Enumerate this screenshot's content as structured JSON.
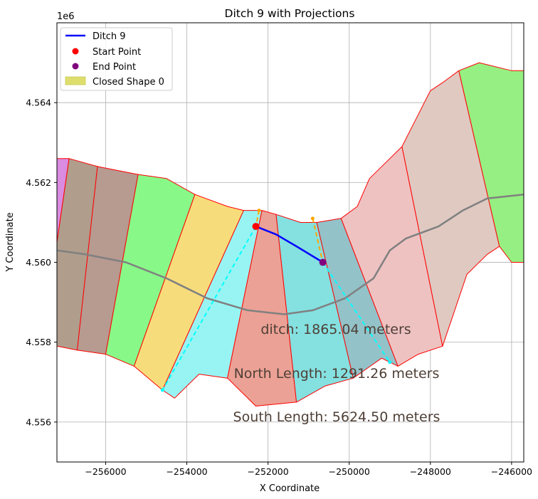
{
  "chart_data": {
    "type": "line",
    "title": "Ditch 9 with Projections",
    "xlabel": "X Coordinate",
    "ylabel": "Y Coordinate",
    "y_offset_label": "1e6",
    "xlim": [
      -257200,
      -245700
    ],
    "ylim": [
      4.555,
      4.566
    ],
    "y_unit_scale": 1000000,
    "x_ticks": [
      -256000,
      -254000,
      -252000,
      -250000,
      -248000,
      -246000
    ],
    "x_tick_labels": [
      "−256000",
      "−254000",
      "−252000",
      "−250000",
      "−248000",
      "−246000"
    ],
    "y_ticks": [
      4.556,
      4.558,
      4.56,
      4.562,
      4.564
    ],
    "y_tick_labels": [
      "4.556",
      "4.558",
      "4.560",
      "4.562",
      "4.564"
    ],
    "grid": true,
    "legend_position": "top-left",
    "legend": [
      {
        "label": "Ditch 9",
        "kind": "line",
        "color": "#0000ff"
      },
      {
        "label": "Start Point",
        "kind": "marker",
        "color": "#ff0000"
      },
      {
        "label": "End Point",
        "kind": "marker",
        "color": "#800080"
      },
      {
        "label": "Closed Shape 0",
        "kind": "patch",
        "color": "#dede6e"
      }
    ],
    "ditch": {
      "color": "#0000ff",
      "points": [
        [
          -252300,
          4.5609
        ],
        [
          -251800,
          4.5607
        ],
        [
          -251300,
          4.5604
        ],
        [
          -250650,
          4.56
        ]
      ]
    },
    "start_point": {
      "x": -252300,
      "y": 4.5609,
      "color": "#ff0000"
    },
    "end_point": {
      "x": -250650,
      "y": 4.56,
      "color": "#800080"
    },
    "centerline": {
      "color": "#808080",
      "points": [
        [
          -257200,
          4.5603
        ],
        [
          -256500,
          4.5602
        ],
        [
          -255500,
          4.56
        ],
        [
          -254500,
          4.5596
        ],
        [
          -253500,
          4.5591
        ],
        [
          -252500,
          4.5588
        ],
        [
          -251600,
          4.5587
        ],
        [
          -250900,
          4.5588
        ],
        [
          -250100,
          4.5591
        ],
        [
          -249400,
          4.5596
        ],
        [
          -249000,
          4.5603
        ],
        [
          -248600,
          4.5606
        ],
        [
          -247800,
          4.5609
        ],
        [
          -247200,
          4.5613
        ],
        [
          -246600,
          4.5616
        ],
        [
          -245700,
          4.5617
        ]
      ]
    },
    "projections": [
      {
        "color": "#ffa500",
        "points": [
          [
            -252220,
            4.5613
          ],
          [
            -252300,
            4.5609
          ]
        ]
      },
      {
        "color": "#ffa500",
        "points": [
          [
            -250900,
            4.5611
          ],
          [
            -250650,
            4.56
          ]
        ]
      },
      {
        "color": "#00ffff",
        "points": [
          [
            -252300,
            4.5609
          ],
          [
            -254600,
            4.5568
          ]
        ]
      },
      {
        "color": "#00ffff",
        "points": [
          [
            -250650,
            4.56
          ],
          [
            -249000,
            4.5575
          ]
        ]
      }
    ],
    "projection_endpoints": [
      {
        "x": -252220,
        "y": 4.5613,
        "color": "#ffa500"
      },
      {
        "x": -250900,
        "y": 4.5611,
        "color": "#ffa500"
      },
      {
        "x": -254600,
        "y": 4.5568,
        "color": "#00ffff"
      },
      {
        "x": -249000,
        "y": 4.5575,
        "color": "#00ffff"
      }
    ],
    "segments": [
      {
        "color": "#d98ce0",
        "points": [
          [
            -257200,
            4.5626
          ],
          [
            -256900,
            4.5626
          ],
          [
            -257200,
            4.5605
          ]
        ]
      },
      {
        "color": "#b09d8c",
        "points": [
          [
            -256900,
            4.5626
          ],
          [
            -256200,
            4.5624
          ],
          [
            -256700,
            4.5578
          ],
          [
            -257200,
            4.5579
          ],
          [
            -257200,
            4.5605
          ]
        ]
      },
      {
        "color": "#b79a90",
        "points": [
          [
            -256200,
            4.5624
          ],
          [
            -255200,
            4.5622
          ],
          [
            -256000,
            4.5577
          ],
          [
            -256700,
            4.5578
          ]
        ]
      },
      {
        "color": "#88f888",
        "points": [
          [
            -255200,
            4.5622
          ],
          [
            -254500,
            4.5621
          ],
          [
            -253800,
            4.5617
          ],
          [
            -255300,
            4.5574
          ],
          [
            -256000,
            4.5577
          ]
        ]
      },
      {
        "color": "#f7dc7c",
        "points": [
          [
            -253800,
            4.5617
          ],
          [
            -253000,
            4.5614
          ],
          [
            -252600,
            4.5613
          ],
          [
            -254600,
            4.5568
          ],
          [
            -255300,
            4.5574
          ]
        ]
      },
      {
        "color": "#98f4f2",
        "points": [
          [
            -252600,
            4.5613
          ],
          [
            -252150,
            4.5613
          ],
          [
            -253000,
            4.5571
          ],
          [
            -253700,
            4.5572
          ],
          [
            -254300,
            4.5566
          ],
          [
            -254600,
            4.5568
          ]
        ]
      },
      {
        "color": "#eba195",
        "points": [
          [
            -252150,
            4.5613
          ],
          [
            -251800,
            4.5612
          ],
          [
            -251300,
            4.5565
          ],
          [
            -252300,
            4.5564
          ],
          [
            -253000,
            4.5571
          ]
        ]
      },
      {
        "color": "#85e0e0",
        "points": [
          [
            -251800,
            4.5612
          ],
          [
            -251200,
            4.561
          ],
          [
            -250800,
            4.561
          ],
          [
            -249900,
            4.5571
          ],
          [
            -250600,
            4.5569
          ],
          [
            -251300,
            4.5565
          ]
        ]
      },
      {
        "color": "#93c2c8",
        "points": [
          [
            -250800,
            4.561
          ],
          [
            -250200,
            4.5611
          ],
          [
            -248800,
            4.5574
          ],
          [
            -249200,
            4.5576
          ],
          [
            -249900,
            4.5571
          ]
        ]
      },
      {
        "color": "#eec2c1",
        "points": [
          [
            -250200,
            4.5611
          ],
          [
            -249800,
            4.5614
          ],
          [
            -249500,
            4.5621
          ],
          [
            -249000,
            4.5626
          ],
          [
            -248700,
            4.5629
          ],
          [
            -247700,
            4.5579
          ],
          [
            -248300,
            4.5577
          ],
          [
            -248800,
            4.5574
          ]
        ]
      },
      {
        "color": "#dfc9c1",
        "points": [
          [
            -248700,
            4.5629
          ],
          [
            -248400,
            4.5635
          ],
          [
            -248000,
            4.5643
          ],
          [
            -247700,
            4.5645
          ],
          [
            -247300,
            4.5648
          ],
          [
            -246300,
            4.5604
          ],
          [
            -246600,
            4.5602
          ],
          [
            -247100,
            4.5597
          ],
          [
            -247700,
            4.5579
          ]
        ]
      },
      {
        "color": "#96ef82",
        "points": [
          [
            -247300,
            4.5648
          ],
          [
            -246800,
            4.565
          ],
          [
            -246000,
            4.5648
          ],
          [
            -245700,
            4.5648
          ],
          [
            -245700,
            4.56
          ],
          [
            -246000,
            4.56
          ],
          [
            -246300,
            4.5604
          ]
        ]
      }
    ],
    "annotations": [
      {
        "text": "ditch: 1865.04 meters",
        "x": -251650,
        "y": 4.5582
      },
      {
        "text": "North Length: 1291.26 meters",
        "x": -250500,
        "y": 4.5571
      },
      {
        "text": "South Length: 5624.50 meters",
        "x": -250500,
        "y": 4.556
      }
    ]
  }
}
